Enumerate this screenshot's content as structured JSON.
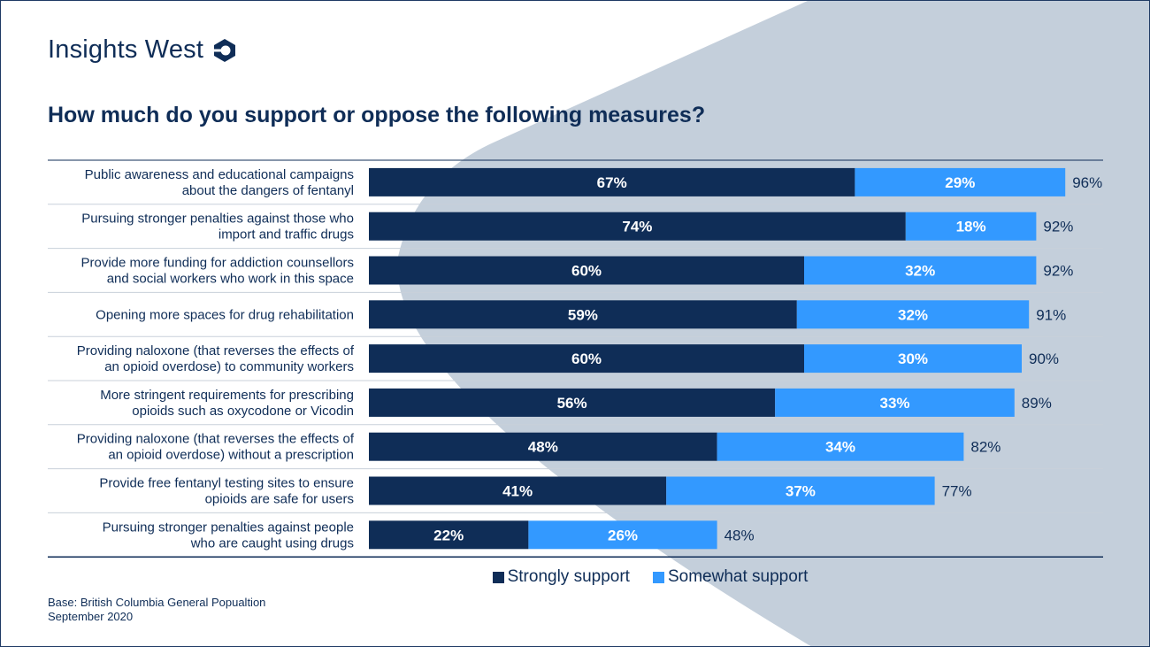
{
  "brand": {
    "name": "Insights West"
  },
  "colors": {
    "strongly": "#0f2d57",
    "somewhat": "#3399ff",
    "background_shape": "#c4cfdb",
    "text": "#0f2d57"
  },
  "chart_data": {
    "type": "bar",
    "orientation": "horizontal",
    "stacked": true,
    "title": "How much do you support or oppose the following measures?",
    "categories": [
      [
        "Public awareness and educational campaigns",
        "about the dangers of fentanyl"
      ],
      [
        "Pursuing stronger penalties against those who",
        "import and traffic drugs"
      ],
      [
        "Provide more funding for addiction counsellors",
        "and social workers who work in this space"
      ],
      [
        "Opening more spaces for drug rehabilitation"
      ],
      [
        "Providing naloxone (that reverses the effects of",
        "an opioid overdose) to community workers"
      ],
      [
        "More stringent requirements for prescribing",
        "opioids such as oxycodone or Vicodin"
      ],
      [
        "Providing naloxone (that reverses the effects of",
        "an opioid overdose) without a prescription"
      ],
      [
        "Provide free fentanyl testing sites to ensure",
        "opioids are safe for users"
      ],
      [
        "Pursuing stronger penalties against people",
        "who are caught using drugs"
      ]
    ],
    "series": [
      {
        "name": "Strongly support",
        "values": [
          67,
          74,
          60,
          59,
          60,
          56,
          48,
          41,
          22
        ]
      },
      {
        "name": "Somewhat support",
        "values": [
          29,
          18,
          32,
          32,
          30,
          33,
          34,
          37,
          26
        ]
      }
    ],
    "totals": [
      96,
      92,
      92,
      91,
      90,
      89,
      82,
      77,
      48
    ],
    "unit": "%",
    "xlim": [
      0,
      100
    ],
    "legend_position": "bottom"
  },
  "legend": {
    "strongly": "Strongly support",
    "somewhat": "Somewhat support"
  },
  "footnote": {
    "base": "Base: British Columbia General Popualtion",
    "date": "September 2020"
  }
}
